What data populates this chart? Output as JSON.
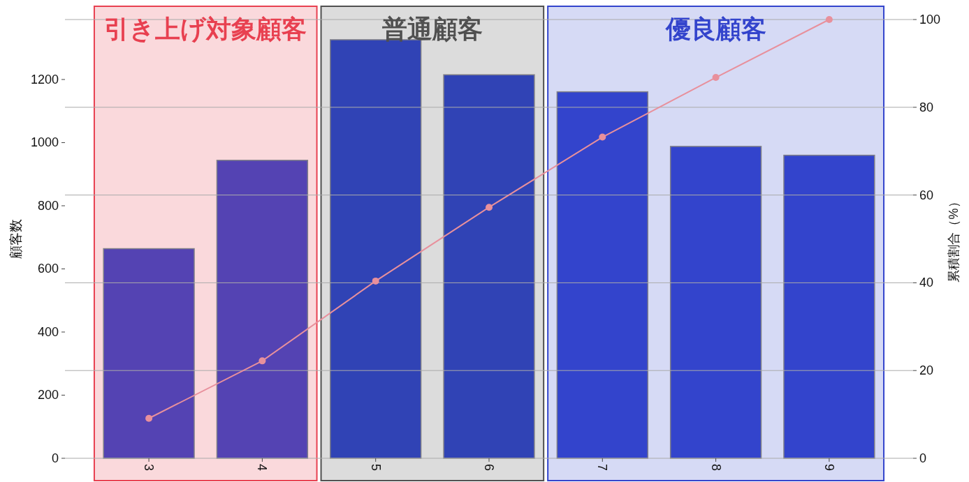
{
  "chart_data": {
    "type": "bar",
    "categories": [
      "3",
      "4",
      "5",
      "6",
      "7",
      "8",
      "9"
    ],
    "series": [
      {
        "type": "bar",
        "axis": "y",
        "colors": [
          "#5443b3",
          "#5443b3",
          "#3043b5",
          "#3043b5",
          "#3344cc",
          "#3344cc",
          "#3344cc"
        ],
        "values": [
          664,
          944,
          1326,
          1215,
          1161,
          988,
          960
        ]
      },
      {
        "type": "line",
        "axis": "y2",
        "color": "#e8909c",
        "values": [
          9.1,
          22.2,
          40.4,
          57.2,
          73.2,
          86.8,
          100
        ]
      }
    ],
    "marker": "circle",
    "ylabel": "顧客数",
    "y2label": "累積割合（%）",
    "ylim": [
      0,
      1390
    ],
    "yticks": [
      0,
      200,
      400,
      600,
      800,
      1000,
      1200
    ],
    "y2lim": [
      0,
      100
    ],
    "y2ticks": [
      0,
      20,
      40,
      60,
      80,
      100
    ],
    "grid": "y2",
    "bands": [
      {
        "axis": "x",
        "from": "3",
        "to": "4",
        "label": "引き上げ対象顧客",
        "color": "#e84050"
      },
      {
        "axis": "x",
        "from": "5",
        "to": "6",
        "label": "普通顧客",
        "color": "#505050"
      },
      {
        "axis": "x",
        "from": "7",
        "to": "9",
        "label": "優良顧客",
        "color": "#3344cc"
      }
    ]
  }
}
